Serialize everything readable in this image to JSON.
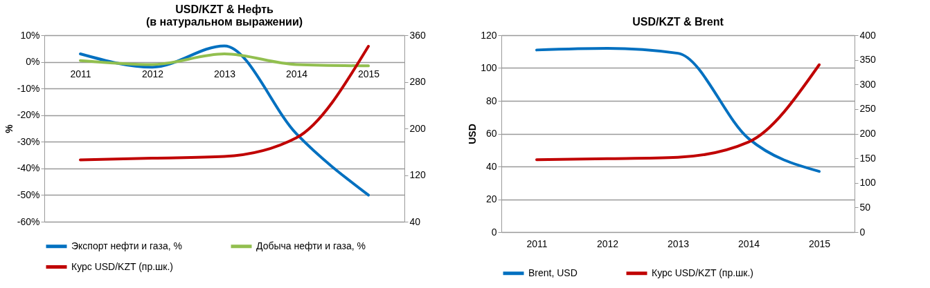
{
  "chart_data": [
    {
      "type": "line",
      "title": "USD/KZT & Нефть\n(в натуральном выражении)",
      "ylabel": "%",
      "categories": [
        "2011",
        "2012",
        "2013",
        "2014",
        "2015"
      ],
      "ylim": [
        -60,
        10
      ],
      "yticks": [
        {
          "value": 10,
          "label": "10%"
        },
        {
          "value": 0,
          "label": "0%"
        },
        {
          "value": -10,
          "label": "-10%"
        },
        {
          "value": -20,
          "label": "-20%"
        },
        {
          "value": -30,
          "label": "-30%"
        },
        {
          "value": -40,
          "label": "-40%"
        },
        {
          "value": -50,
          "label": "-50%"
        },
        {
          "value": -60,
          "label": "-60%"
        }
      ],
      "y2lim": [
        40,
        360
      ],
      "y2ticks": [
        40,
        120,
        200,
        280,
        360
      ],
      "grid": "y",
      "legend": "bottom",
      "series": [
        {
          "name": "Экспорт нефти и газа, %",
          "color": "#0070c0",
          "values": [
            3,
            -2,
            6,
            -27,
            -50
          ]
        },
        {
          "name": "Добыча нефти и газа, %",
          "color": "#92bf4f",
          "values": [
            0.5,
            -1,
            3,
            -1,
            -1.5
          ]
        },
        {
          "name": "Курс USD/KZT (пр.шк.)",
          "color": "#c00000",
          "axis": "y2",
          "values": [
            146,
            149,
            152,
            184,
            341
          ]
        }
      ]
    },
    {
      "type": "line",
      "title": "USD/KZT & Brent",
      "ylabel": "USD",
      "categories": [
        "2011",
        "2012",
        "2013",
        "2014",
        "2015"
      ],
      "ylim": [
        0,
        120
      ],
      "yticks": [
        0,
        20,
        40,
        60,
        80,
        100,
        120
      ],
      "y2lim": [
        0,
        400
      ],
      "y2ticks": [
        0,
        50,
        100,
        150,
        200,
        250,
        300,
        350,
        400
      ],
      "grid": "y",
      "legend": "bottom",
      "series": [
        {
          "name": "Brent, USD",
          "color": "#0070c0",
          "values": [
            111,
            112,
            109,
            57,
            37
          ]
        },
        {
          "name": "Курс USD/KZT (пр.шк.)",
          "color": "#c00000",
          "axis": "y2",
          "values": [
            147,
            149,
            152,
            183,
            340
          ]
        }
      ]
    }
  ]
}
